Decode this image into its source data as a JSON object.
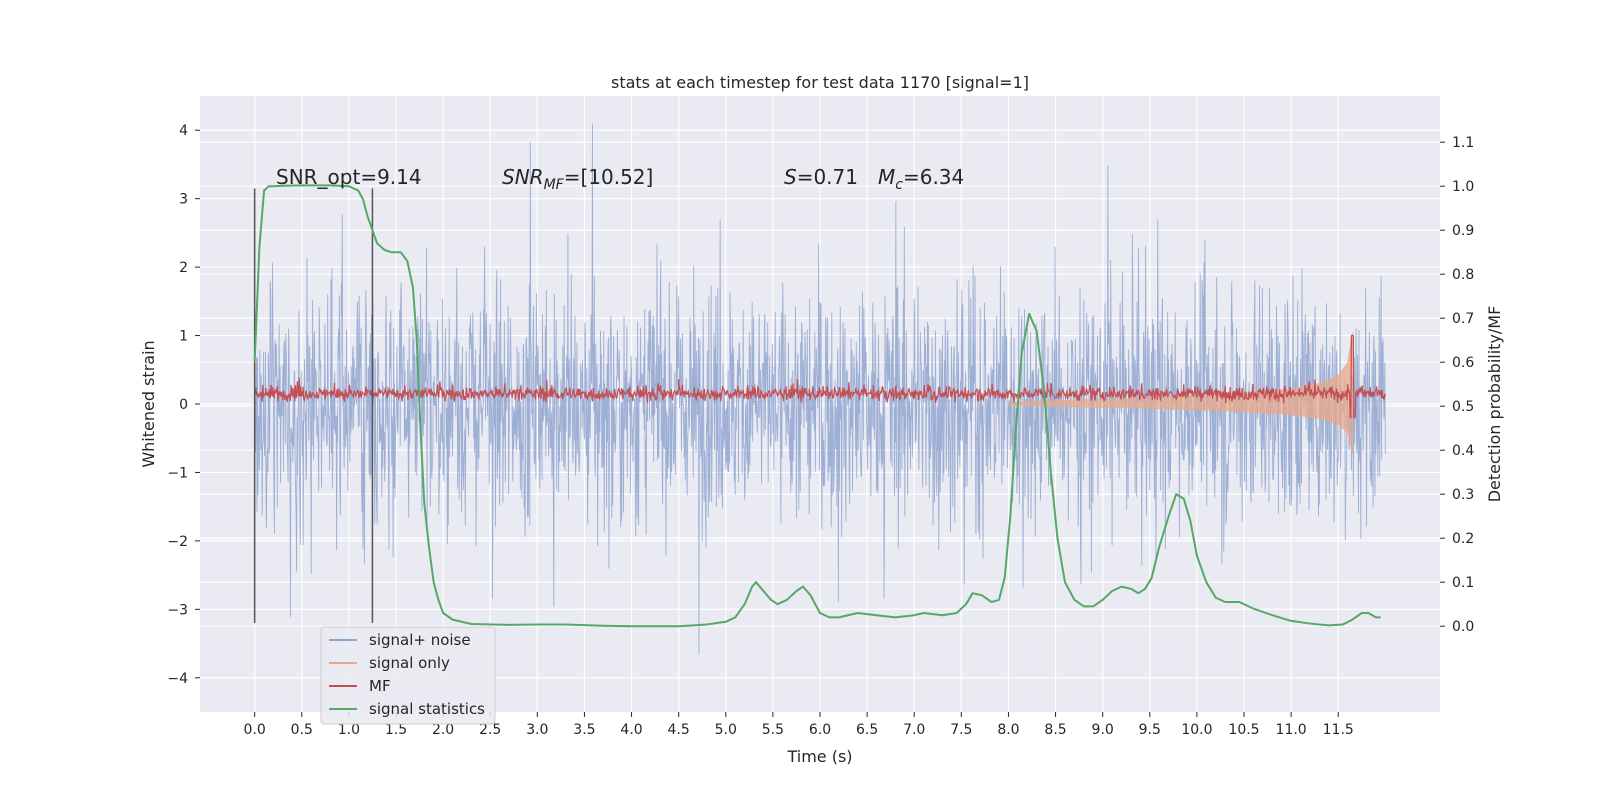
{
  "chart_data": {
    "type": "line",
    "title": "stats at each timestep for test data 1170 [signal=1]",
    "xlabel": "Time (s)",
    "ylabel_left": "Whitened strain",
    "ylabel_right": "Detection probability/MF",
    "xlim": [
      -0.58,
      12.58
    ],
    "ylim_left": [
      -4.5,
      4.5
    ],
    "ylim_right": [
      -0.195,
      1.205
    ],
    "x_ticks": [
      "0.0",
      "0.5",
      "1.0",
      "1.5",
      "2.0",
      "2.5",
      "3.0",
      "3.5",
      "4.0",
      "4.5",
      "5.0",
      "5.5",
      "6.0",
      "6.5",
      "7.0",
      "7.5",
      "8.0",
      "8.5",
      "9.0",
      "9.5",
      "10.0",
      "10.5",
      "11.0",
      "11.5"
    ],
    "y_ticks_left": [
      "4",
      "3",
      "2",
      "1",
      "0",
      "−1",
      "−2",
      "−3",
      "−4"
    ],
    "y_ticks_right": [
      "1.1",
      "1.0",
      "0.9",
      "0.8",
      "0.7",
      "0.6",
      "0.5",
      "0.4",
      "0.3",
      "0.2",
      "0.1",
      "0.0"
    ],
    "grid": true,
    "legend_position": "lower-left",
    "annotations": {
      "snr_opt": "SNR_opt=9.14",
      "snr_mf_main": "SNR",
      "snr_mf_sub": "MF",
      "snr_mf_value": "=[10.52]",
      "s_main": "S",
      "s_value": "=0.71",
      "mc_main": "M",
      "mc_sub": "c",
      "mc_value": "=6.34"
    },
    "vertical_markers": [
      0.0,
      1.25
    ],
    "series": [
      {
        "name": "signal+ noise",
        "color": "#8fa5cf",
        "axis": "left",
        "note": "dense noise trace spanning 0.0–12.0 s, amplitude mostly within ±2.5"
      },
      {
        "name": "signal only",
        "color": "#e8a88a",
        "axis": "left",
        "note": "chirp envelope growing from ~8.0 s to 11.65 s",
        "envelope": [
          [
            8.0,
            0.02
          ],
          [
            8.5,
            0.05
          ],
          [
            9.0,
            0.07
          ],
          [
            9.5,
            0.09
          ],
          [
            10.0,
            0.12
          ],
          [
            10.5,
            0.16
          ],
          [
            11.0,
            0.22
          ],
          [
            11.3,
            0.3
          ],
          [
            11.5,
            0.42
          ],
          [
            11.6,
            0.6
          ],
          [
            11.65,
            1.05
          ]
        ]
      },
      {
        "name": "MF",
        "color": "#c44e52",
        "axis": "left",
        "note": "noisy trace around 0.15 with spike near 11.65 s",
        "baseline": 0.15,
        "spike": [
          11.65,
          1.0
        ]
      },
      {
        "name": "signal statistics",
        "color": "#55a868",
        "axis": "right",
        "points": [
          [
            0.0,
            0.6
          ],
          [
            0.05,
            0.86
          ],
          [
            0.1,
            0.99
          ],
          [
            0.15,
            1.0
          ],
          [
            0.2,
            1.0
          ],
          [
            0.3,
            1.001
          ],
          [
            0.5,
            1.002
          ],
          [
            0.8,
            1.002
          ],
          [
            1.0,
            1.0
          ],
          [
            1.1,
            0.99
          ],
          [
            1.15,
            0.97
          ],
          [
            1.2,
            0.93
          ],
          [
            1.25,
            0.9
          ],
          [
            1.3,
            0.87
          ],
          [
            1.38,
            0.855
          ],
          [
            1.45,
            0.85
          ],
          [
            1.55,
            0.85
          ],
          [
            1.62,
            0.83
          ],
          [
            1.68,
            0.77
          ],
          [
            1.72,
            0.65
          ],
          [
            1.76,
            0.45
          ],
          [
            1.8,
            0.28
          ],
          [
            1.85,
            0.18
          ],
          [
            1.9,
            0.1
          ],
          [
            1.95,
            0.06
          ],
          [
            2.0,
            0.03
          ],
          [
            2.1,
            0.015
          ],
          [
            2.3,
            0.005
          ],
          [
            2.7,
            0.003
          ],
          [
            3.0,
            0.004
          ],
          [
            3.3,
            0.004
          ],
          [
            3.7,
            0.001
          ],
          [
            4.0,
            0.0
          ],
          [
            4.5,
            0.0
          ],
          [
            4.8,
            0.004
          ],
          [
            5.0,
            0.01
          ],
          [
            5.1,
            0.02
          ],
          [
            5.2,
            0.05
          ],
          [
            5.28,
            0.09
          ],
          [
            5.32,
            0.1
          ],
          [
            5.4,
            0.08
          ],
          [
            5.48,
            0.06
          ],
          [
            5.55,
            0.05
          ],
          [
            5.65,
            0.06
          ],
          [
            5.75,
            0.08
          ],
          [
            5.82,
            0.09
          ],
          [
            5.9,
            0.07
          ],
          [
            6.0,
            0.03
          ],
          [
            6.1,
            0.02
          ],
          [
            6.2,
            0.02
          ],
          [
            6.4,
            0.03
          ],
          [
            6.6,
            0.025
          ],
          [
            6.8,
            0.02
          ],
          [
            7.0,
            0.025
          ],
          [
            7.1,
            0.03
          ],
          [
            7.3,
            0.025
          ],
          [
            7.45,
            0.03
          ],
          [
            7.55,
            0.05
          ],
          [
            7.62,
            0.075
          ],
          [
            7.72,
            0.07
          ],
          [
            7.82,
            0.055
          ],
          [
            7.9,
            0.06
          ],
          [
            7.96,
            0.11
          ],
          [
            8.02,
            0.25
          ],
          [
            8.08,
            0.45
          ],
          [
            8.14,
            0.62
          ],
          [
            8.22,
            0.71
          ],
          [
            8.3,
            0.67
          ],
          [
            8.38,
            0.53
          ],
          [
            8.45,
            0.35
          ],
          [
            8.52,
            0.2
          ],
          [
            8.6,
            0.1
          ],
          [
            8.7,
            0.06
          ],
          [
            8.8,
            0.045
          ],
          [
            8.9,
            0.045
          ],
          [
            9.0,
            0.06
          ],
          [
            9.1,
            0.08
          ],
          [
            9.2,
            0.09
          ],
          [
            9.3,
            0.085
          ],
          [
            9.38,
            0.075
          ],
          [
            9.45,
            0.085
          ],
          [
            9.52,
            0.11
          ],
          [
            9.6,
            0.18
          ],
          [
            9.7,
            0.25
          ],
          [
            9.78,
            0.3
          ],
          [
            9.86,
            0.29
          ],
          [
            9.93,
            0.24
          ],
          [
            10.0,
            0.16
          ],
          [
            10.1,
            0.1
          ],
          [
            10.2,
            0.065
          ],
          [
            10.3,
            0.055
          ],
          [
            10.45,
            0.055
          ],
          [
            10.6,
            0.04
          ],
          [
            10.8,
            0.025
          ],
          [
            11.0,
            0.012
          ],
          [
            11.2,
            0.006
          ],
          [
            11.4,
            0.002
          ],
          [
            11.55,
            0.004
          ],
          [
            11.65,
            0.015
          ],
          [
            11.75,
            0.03
          ],
          [
            11.82,
            0.03
          ],
          [
            11.9,
            0.02
          ],
          [
            11.95,
            0.02
          ]
        ]
      }
    ]
  }
}
